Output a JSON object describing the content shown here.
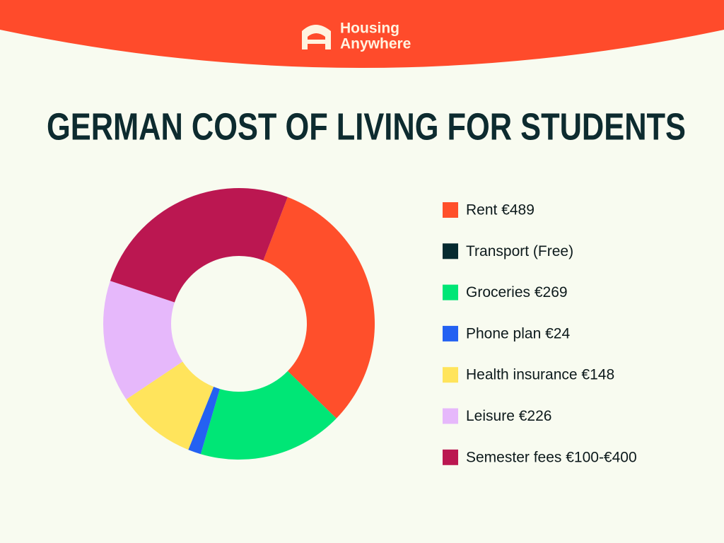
{
  "header": {
    "logo_lines": [
      "Housing",
      "Anywhere"
    ]
  },
  "chart_data": {
    "type": "donut",
    "title": "GERMAN COST OF LIVING FOR STUDENTS",
    "categories": [
      "Rent €489",
      "Transport (Free)",
      "Groceries €269",
      "Phone plan €24",
      "Health insurance €148",
      "Leisure €226",
      "Semester fees €100-€400"
    ],
    "values": [
      489,
      0,
      269,
      24,
      148,
      226,
      400
    ],
    "colors": [
      "#ff4f2b",
      "#062a30",
      "#00e676",
      "#2461f2",
      "#ffe45c",
      "#e6b8fb",
      "#bb1751"
    ],
    "legend": "right"
  }
}
